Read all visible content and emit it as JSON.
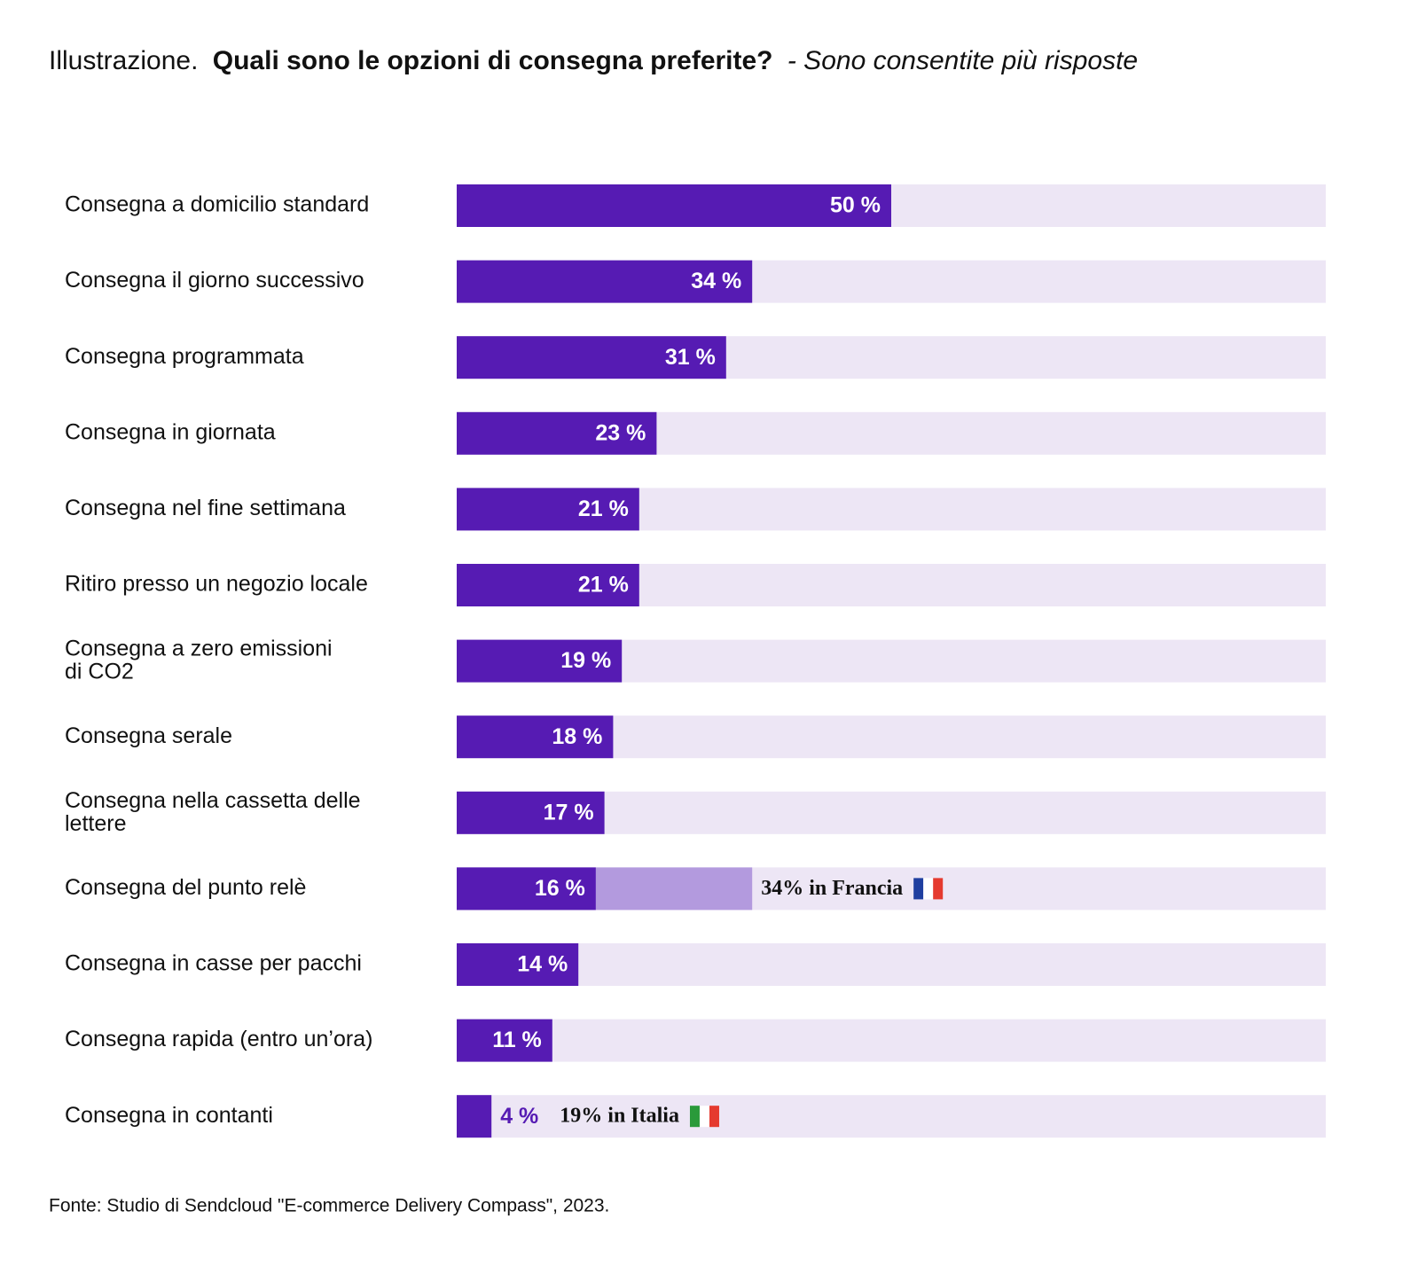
{
  "chart_data": {
    "type": "hbar",
    "title_prefix": "Illustrazione.",
    "title": "Quali sono le opzioni di consegna preferite?",
    "subtitle": "- Sono consentite più risposte",
    "categories": [
      "Consegna a domicilio standard",
      "Consegna il giorno successivo",
      "Consegna programmata",
      "Consegna in giornata",
      "Consegna nel fine settimana",
      "Ritiro presso un negozio locale",
      "Consegna a zero emissioni\ndi CO2",
      "Consegna serale",
      "Consegna nella cassetta delle\nlettere",
      "Consegna del punto relè",
      "Consegna in casse per pacchi",
      "Consegna rapida (entro un’ora)",
      "Consegna in contanti"
    ],
    "values": [
      50,
      34,
      31,
      23,
      21,
      21,
      19,
      18,
      17,
      16,
      14,
      11,
      4
    ],
    "value_labels": [
      "50 %",
      "34 %",
      "31 %",
      "23 %",
      "21 %",
      "21 %",
      "19 %",
      "18 %",
      "17 %",
      "16 %",
      "14 %",
      "11 %",
      "4 %"
    ],
    "comparison_values": [
      null,
      null,
      null,
      null,
      null,
      null,
      null,
      null,
      null,
      34,
      null,
      null,
      null
    ],
    "comparison_labels": [
      null,
      null,
      null,
      null,
      null,
      null,
      null,
      null,
      null,
      "34% in Francia",
      null,
      null,
      "19% in Italia"
    ],
    "color": "#561bb3",
    "track_color": "#ede6f5",
    "comparison_color": "#b39ade",
    "xlim": [
      0,
      100
    ],
    "source": "Fonte: Studio di Sendcloud \"E-commerce Delivery Compass\", 2023."
  }
}
